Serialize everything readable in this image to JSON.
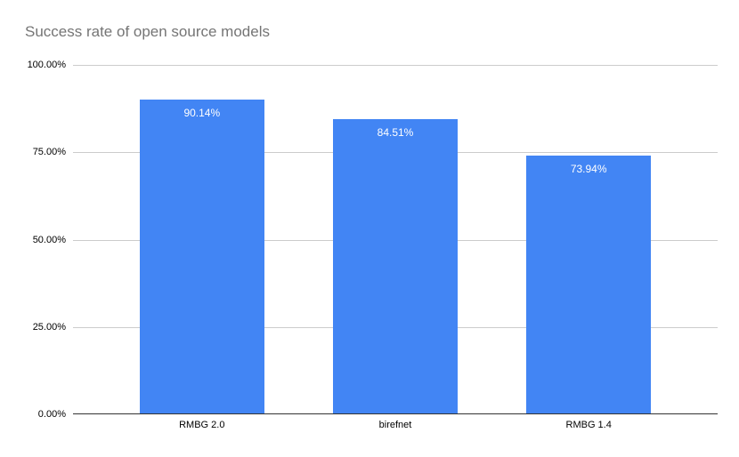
{
  "chart_data": {
    "type": "bar",
    "title": "Success rate of open source models",
    "categories": [
      "RMBG 2.0",
      "birefnet",
      "RMBG 1.4"
    ],
    "values": [
      90.14,
      84.51,
      73.94
    ],
    "value_labels": [
      "90.14%",
      "84.51%",
      "73.94%"
    ],
    "xlabel": "",
    "ylabel": "",
    "ylim": [
      0,
      100
    ],
    "yticks": [
      {
        "value": 100,
        "label": "100.00%"
      },
      {
        "value": 75,
        "label": "75.00%"
      },
      {
        "value": 50,
        "label": "50.00%"
      },
      {
        "value": 25,
        "label": "25.00%"
      },
      {
        "value": 0,
        "label": "0.00%"
      }
    ],
    "grid": true,
    "legend": "none",
    "colors": {
      "bar": "#4285f4",
      "title_text": "#757575",
      "axis_text": "#000000",
      "data_label_text": "#ffffff",
      "gridline": "#cccccc",
      "axis_line": "#333333",
      "background": "#ffffff"
    }
  }
}
